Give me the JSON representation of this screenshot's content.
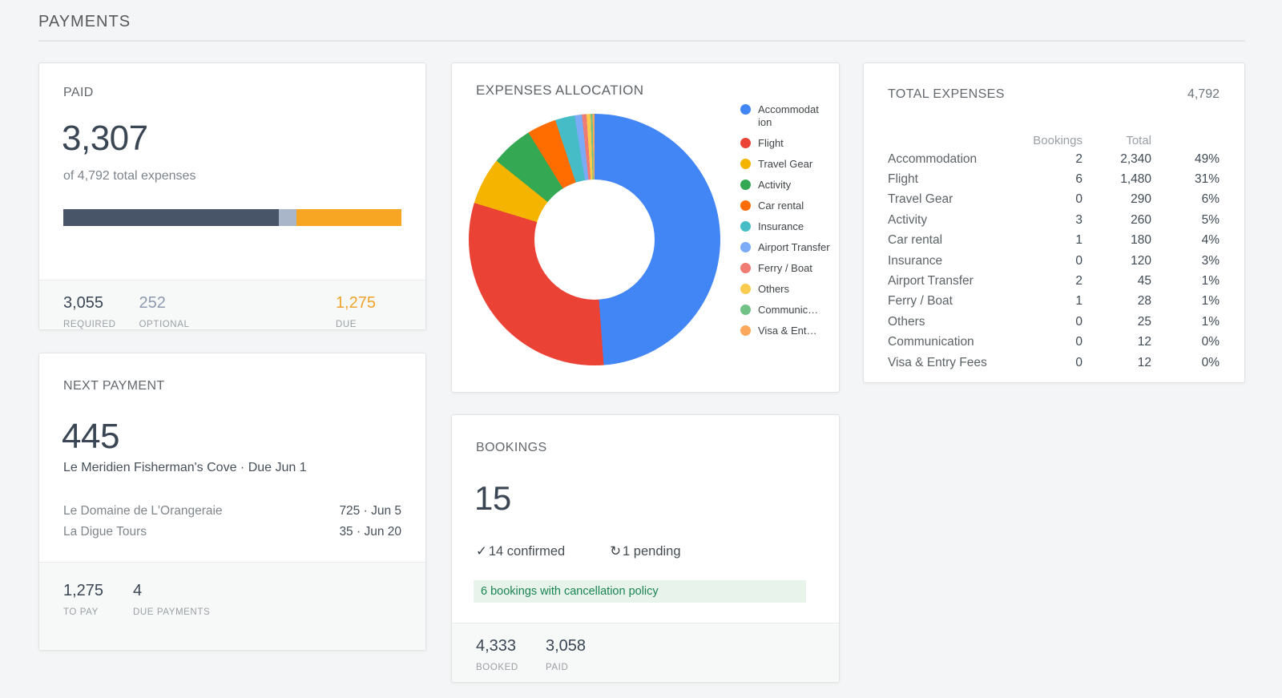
{
  "page": {
    "title": "PAYMENTS"
  },
  "colors": {
    "page_bg": "#f4f5f6",
    "border": "#e2e3e5",
    "number_dark": "#3a4654",
    "footer_bg": "#f7f8f8",
    "footer_border": "#eaebec",
    "optional": "#8e9aaf",
    "due_orange": "#f0a32e",
    "green_text": "#1a8451",
    "green_bg": "#e8f3ec"
  },
  "paid_card": {
    "title": "PAID",
    "amount": "3,307",
    "subtitle": "of 4,792 total expenses",
    "bar": {
      "total": 4792,
      "segments": [
        {
          "name": "paid-required",
          "value": 3055,
          "color": "#485569"
        },
        {
          "name": "paid-optional",
          "value": 252,
          "color": "#a9b6c9"
        },
        {
          "name": "remaining-due",
          "value": 1485,
          "color": "#f6a623"
        }
      ]
    },
    "footer": [
      {
        "value": "3,055",
        "label": "REQUIRED"
      },
      {
        "value": "252",
        "label": "OPTIONAL"
      },
      {
        "value": "1,275",
        "label": "DUE"
      }
    ]
  },
  "next_payment_card": {
    "title": "NEXT PAYMENT",
    "amount": "445",
    "subtitle": "Le Meridien Fisherman's Cove · Due Jun 1",
    "upcoming": [
      {
        "name": "Le Domaine de L'Orangeraie",
        "detail": "725 · Jun 5"
      },
      {
        "name": "La Digue Tours",
        "detail": "35 · Jun 20"
      }
    ],
    "footer": [
      {
        "value": "1,275",
        "label": "TO PAY"
      },
      {
        "value": "4",
        "label": "DUE PAYMENTS"
      }
    ]
  },
  "expenses_card": {
    "title": "EXPENSES ALLOCATION"
  },
  "chart_data": {
    "type": "pie",
    "title": "EXPENSES ALLOCATION",
    "donut": true,
    "legend_position": "right",
    "start_angle_deg": 0,
    "categories": [
      "Accommodation",
      "Flight",
      "Travel Gear",
      "Activity",
      "Car rental",
      "Insurance",
      "Airport Transfer",
      "Ferry / Boat",
      "Others",
      "Communication",
      "Visa & Entry Fees"
    ],
    "values": [
      2340,
      1480,
      290,
      260,
      180,
      120,
      45,
      28,
      25,
      12,
      12
    ],
    "percents": [
      49,
      31,
      6,
      5,
      4,
      3,
      1,
      1,
      1,
      0,
      0
    ],
    "colors": [
      "#4285f4",
      "#ea4335",
      "#f5b400",
      "#34a853",
      "#ff6d00",
      "#46bdc6",
      "#7baaf7",
      "#f07b72",
      "#f9cb4f",
      "#71c287",
      "#fba75c"
    ],
    "legend_labels": [
      "Accommodat ion",
      "Flight",
      "Travel Gear",
      "Activity",
      "Car rental",
      "Insurance",
      "Airport Transfer",
      "Ferry / Boat",
      "Others",
      "Communic…",
      "Visa & Ent…"
    ]
  },
  "bookings_card": {
    "title": "BOOKINGS",
    "count": "15",
    "confirmed": {
      "icon": "✓",
      "text": "14 confirmed"
    },
    "pending": {
      "icon": "↻",
      "text": "1 pending"
    },
    "banner": "6 bookings with cancellation policy",
    "footer": [
      {
        "value": "4,333",
        "label": "BOOKED"
      },
      {
        "value": "3,058",
        "label": "PAID"
      }
    ]
  },
  "total_expenses_card": {
    "title": "TOTAL EXPENSES",
    "total": "4,792",
    "columns": [
      "Bookings",
      "Total"
    ],
    "rows": [
      {
        "category": "Accommodation",
        "bookings": "2",
        "total": "2,340",
        "percent": "49%"
      },
      {
        "category": "Flight",
        "bookings": "6",
        "total": "1,480",
        "percent": "31%"
      },
      {
        "category": "Travel Gear",
        "bookings": "0",
        "total": "290",
        "percent": "6%"
      },
      {
        "category": "Activity",
        "bookings": "3",
        "total": "260",
        "percent": "5%"
      },
      {
        "category": "Car rental",
        "bookings": "1",
        "total": "180",
        "percent": "4%"
      },
      {
        "category": "Insurance",
        "bookings": "0",
        "total": "120",
        "percent": "3%"
      },
      {
        "category": "Airport Transfer",
        "bookings": "2",
        "total": "45",
        "percent": "1%"
      },
      {
        "category": "Ferry / Boat",
        "bookings": "1",
        "total": "28",
        "percent": "1%"
      },
      {
        "category": "Others",
        "bookings": "0",
        "total": "25",
        "percent": "1%"
      },
      {
        "category": "Communication",
        "bookings": "0",
        "total": "12",
        "percent": "0%"
      },
      {
        "category": "Visa & Entry Fees",
        "bookings": "0",
        "total": "12",
        "percent": "0%"
      }
    ]
  }
}
